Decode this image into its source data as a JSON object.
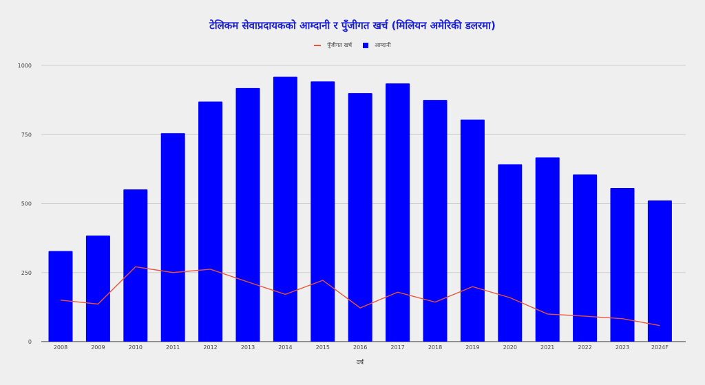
{
  "chart_data": {
    "type": "bar",
    "title": "टेलिकम सेवाप्रदायकको आम्दानी र पुँजीगत खर्च (मिलियन अमेरिकी डलरमा)",
    "xlabel": "वर्ष",
    "ylabel": "",
    "ylim": [
      0,
      1000
    ],
    "yticks": [
      0,
      250,
      500,
      750,
      1000
    ],
    "grid": true,
    "legend_position": "top",
    "categories": [
      "2008",
      "2009",
      "2010",
      "2011",
      "2012",
      "2013",
      "2014",
      "2015",
      "2016",
      "2017",
      "2018",
      "2019",
      "2020",
      "2021",
      "2022",
      "2023",
      "2024F"
    ],
    "series": [
      {
        "name": "पुँजीगत खर्च",
        "type": "line",
        "color": "#e8553a",
        "values": [
          150,
          136,
          271,
          250,
          262,
          216,
          171,
          222,
          122,
          179,
          143,
          199,
          159,
          100,
          92,
          83,
          58
        ]
      },
      {
        "name": "आम्दानी",
        "type": "bar",
        "color": "#0000ff",
        "values": [
          328,
          384,
          551,
          755,
          869,
          918,
          959,
          942,
          900,
          935,
          875,
          804,
          642,
          667,
          605,
          556,
          511
        ]
      }
    ]
  },
  "legend": {
    "capex_label": "पुँजीगत खर्च",
    "revenue_label": "आम्दानी"
  }
}
